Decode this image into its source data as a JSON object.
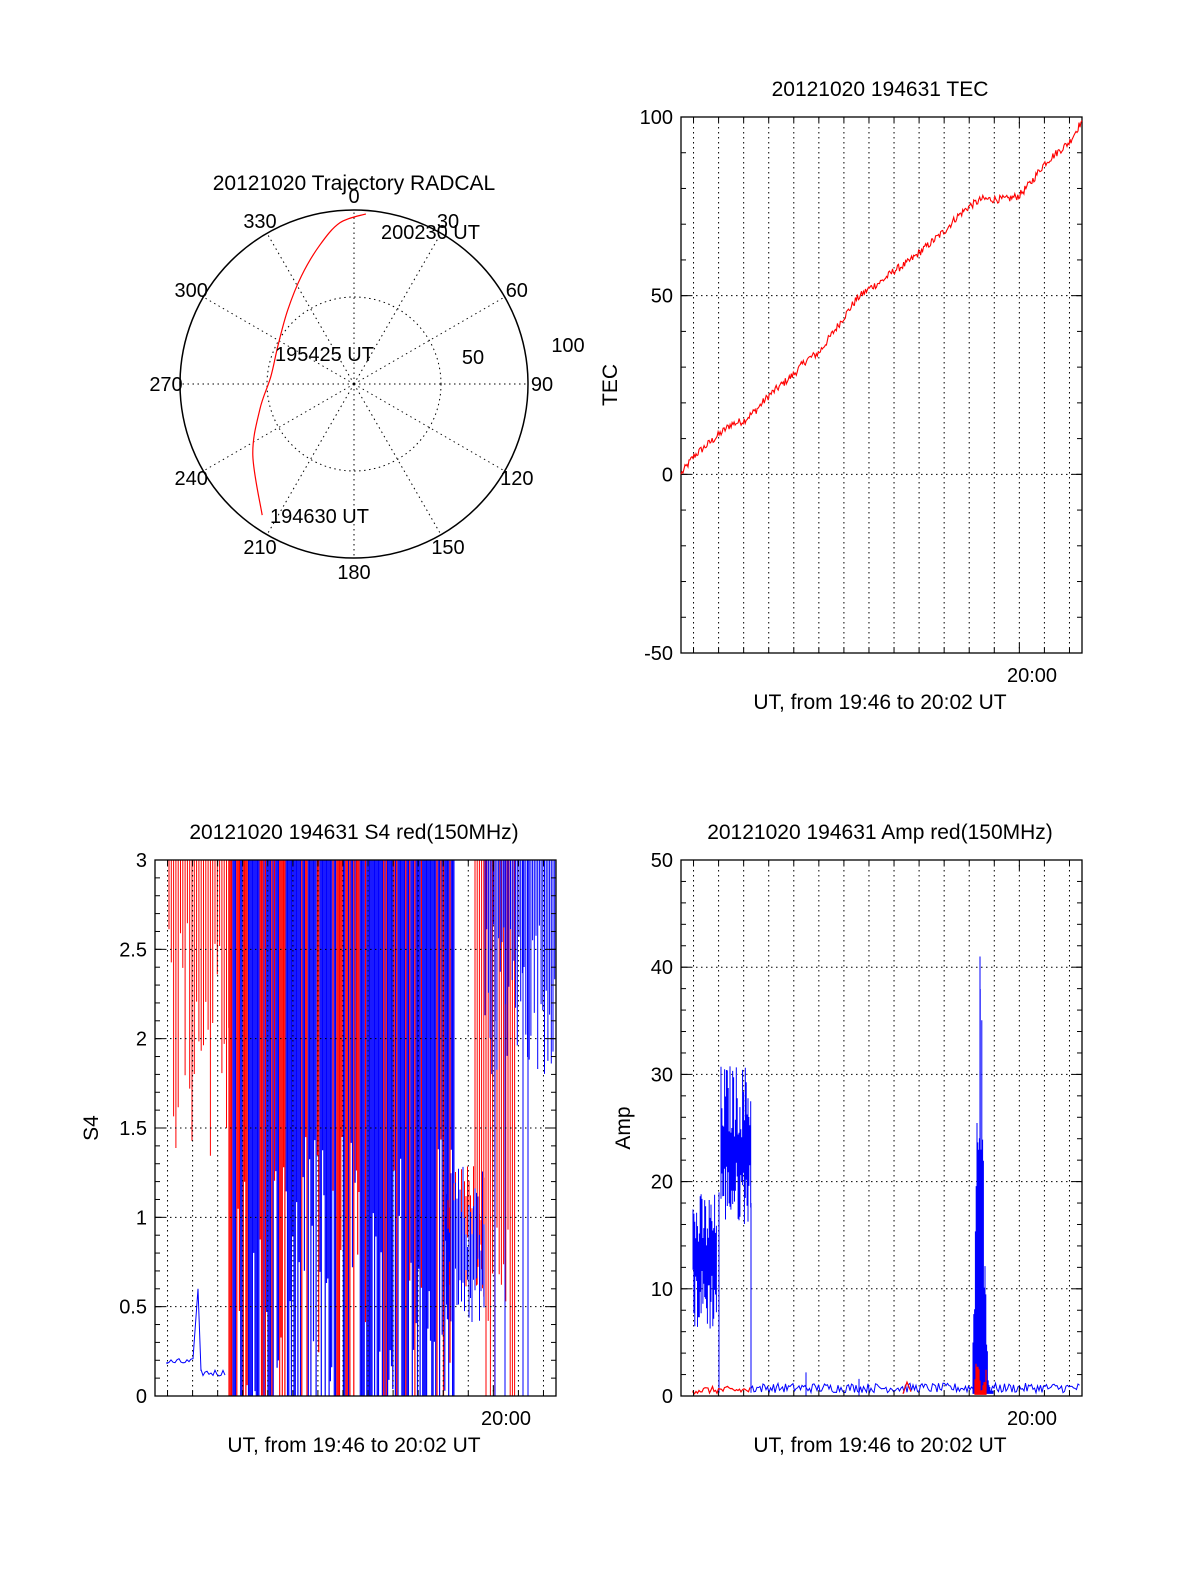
{
  "colors": {
    "red": "#ff0000",
    "blue": "#0000ff",
    "axis": "#000000"
  },
  "chart_data": [
    {
      "id": "trajectory",
      "type": "polar",
      "title": "20121020 Trajectory RADCAL",
      "azimuth_labels": [
        "0",
        "30",
        "60",
        "90",
        "120",
        "150",
        "180",
        "210",
        "240",
        "270",
        "300",
        "330"
      ],
      "radial_labels": [
        "50",
        "100"
      ],
      "rlim": [
        0,
        100
      ],
      "grid": true,
      "series": [
        {
          "color": "red",
          "points": [
            {
              "az": 215,
              "r": 92
            },
            {
              "az": 235,
              "r": 71
            },
            {
              "az": 255,
              "r": 56
            },
            {
              "az": 275,
              "r": 48
            },
            {
              "az": 297,
              "r": 49
            },
            {
              "az": 318,
              "r": 57
            },
            {
              "az": 334,
              "r": 69
            },
            {
              "az": 346,
              "r": 82
            },
            {
              "az": 355,
              "r": 93
            },
            {
              "az": 4,
              "r": 98
            }
          ]
        }
      ],
      "annotations": [
        {
          "text": "194630 UT",
          "az": 215,
          "r": 92
        },
        {
          "text": "195425 UT",
          "az": 275,
          "r": 48
        },
        {
          "text": "200230 UT",
          "az": 4,
          "r": 98
        }
      ]
    },
    {
      "id": "tec",
      "type": "line",
      "title": "20121020 194631 TEC",
      "ylabel": "TEC",
      "xlabel": "UT, from 19:46 to 20:02 UT",
      "x_ticks": [
        "20:00"
      ],
      "y_ticks": [
        "-50",
        "0",
        "50",
        "100"
      ],
      "xlim": [
        46.5,
        62.5
      ],
      "ylim": [
        -50,
        100
      ],
      "grid": true,
      "series": [
        {
          "color": "red",
          "x": [
            46.5,
            47.0,
            47.5,
            48.0,
            48.5,
            49.0,
            49.5,
            50.0,
            50.5,
            51.0,
            51.5,
            52.0,
            52.5,
            53.0,
            53.5,
            54.0,
            54.5,
            55.0,
            55.5,
            56.0,
            56.5,
            57.0,
            57.5,
            58.0,
            58.5,
            59.0,
            59.5,
            60.0,
            60.5,
            61.0,
            61.5,
            62.0,
            62.5
          ],
          "y": [
            0,
            5,
            8,
            11,
            14,
            15,
            18,
            22,
            25,
            28,
            32,
            34,
            39,
            44,
            49,
            52,
            54,
            57,
            59,
            62,
            65,
            68,
            72,
            75,
            77,
            77,
            77,
            78,
            82,
            87,
            90,
            93,
            99
          ]
        }
      ]
    },
    {
      "id": "s4",
      "type": "line",
      "title": "20121020 194631 S4 red(150MHz)",
      "ylabel": "S4",
      "xlabel": "UT, from 19:46 to 20:02 UT",
      "x_ticks": [
        "20:00"
      ],
      "y_ticks": [
        "0",
        "0.5",
        "1",
        "1.5",
        "2",
        "2.5",
        "3"
      ],
      "xlim": [
        46.5,
        62.5
      ],
      "ylim": [
        0,
        3
      ],
      "grid": true,
      "series": [
        {
          "color": "red",
          "description_free": true
        },
        {
          "color": "blue",
          "description_free": true
        }
      ]
    },
    {
      "id": "amp",
      "type": "line",
      "title": "20121020 194631 Amp red(150MHz)",
      "ylabel": "Amp",
      "xlabel": "UT, from 19:46 to 20:02 UT",
      "x_ticks": [
        "20:00"
      ],
      "y_ticks": [
        "0",
        "10",
        "20",
        "30",
        "40",
        "50"
      ],
      "xlim": [
        46.5,
        62.5
      ],
      "ylim": [
        0,
        50
      ],
      "grid": true,
      "series": [
        {
          "color": "blue",
          "description_free": true
        },
        {
          "color": "red",
          "description_free": true
        }
      ]
    }
  ]
}
